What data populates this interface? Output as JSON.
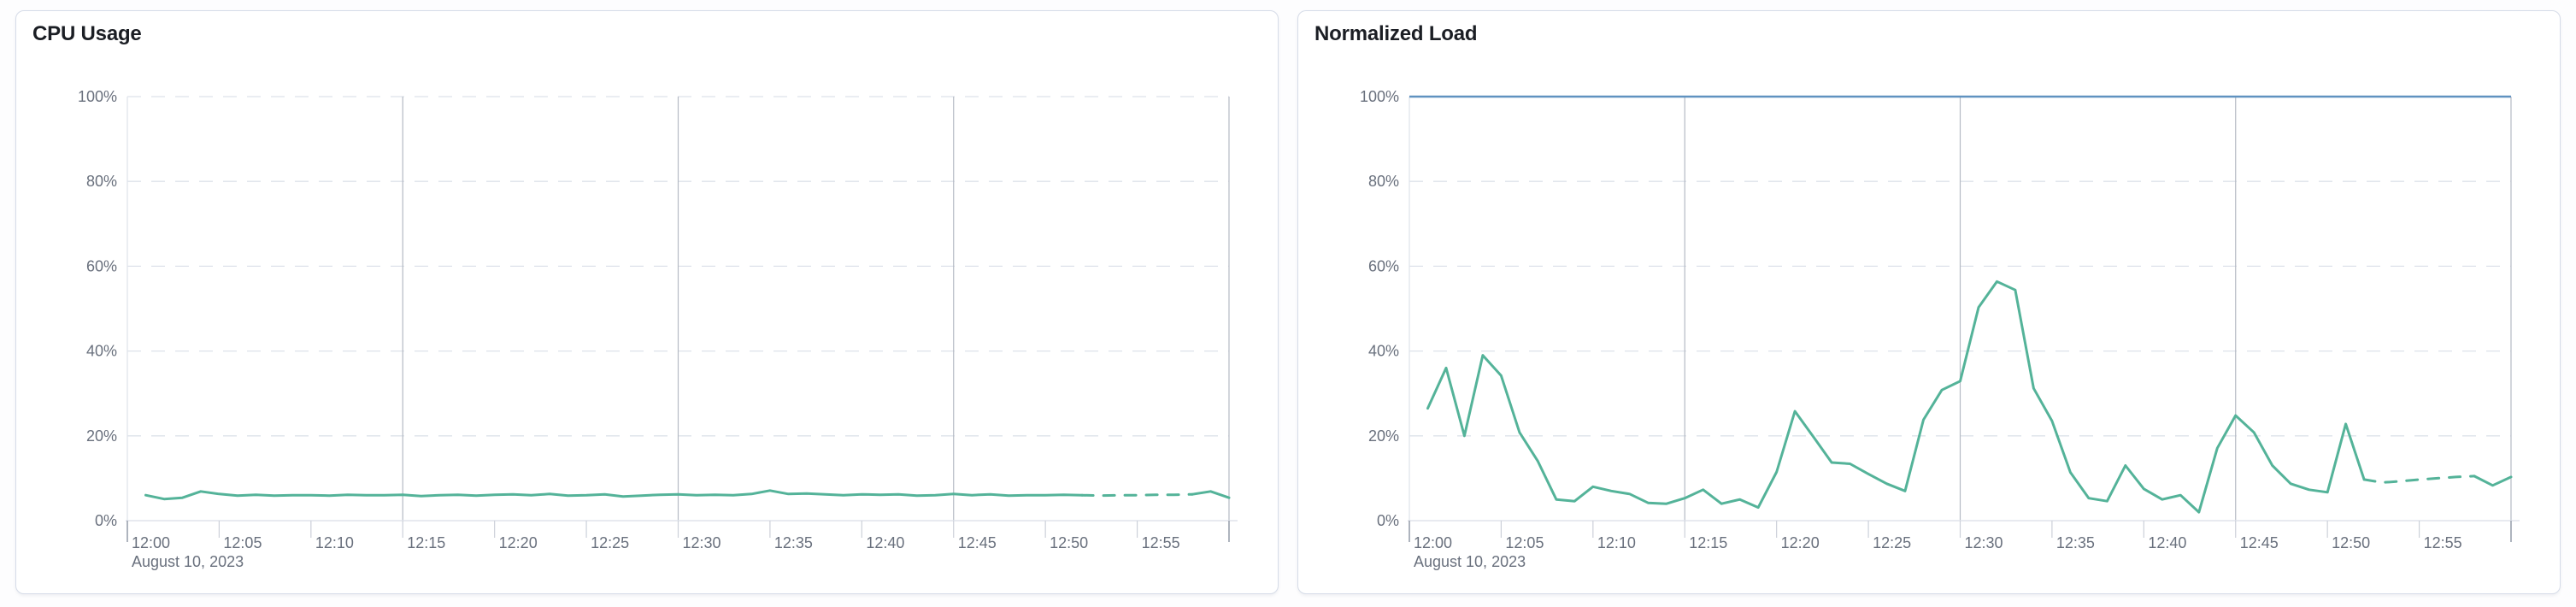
{
  "page": {
    "background": "#fdfdfe",
    "card_background": "#ffffff",
    "card_border_color": "#d6dce8"
  },
  "chart_data": [
    {
      "type": "line",
      "title": "CPU Usage",
      "xlabel": "",
      "ylabel": "",
      "ylim": [
        0,
        100
      ],
      "y_tick_labels": [
        "0%",
        "20%",
        "40%",
        "60%",
        "80%",
        "100%"
      ],
      "x_tick_labels": [
        "12:00",
        "12:05",
        "12:10",
        "12:15",
        "12:20",
        "12:25",
        "12:30",
        "12:35",
        "12:40",
        "12:45",
        "12:50",
        "12:55"
      ],
      "x_date_label": "August 10, 2023",
      "x_range_minutes": [
        0,
        60
      ],
      "grid": {
        "horizontal_dashed_percents": [
          20,
          40,
          60,
          80,
          100
        ],
        "vertical_solid_minutes": [
          15,
          30,
          45,
          60
        ],
        "legend": "none"
      },
      "series": [
        {
          "name": "cpu-usage",
          "color": "#54b399",
          "dashed_segment_minutes": [
            52,
            58
          ],
          "points": [
            [
              1,
              6.0
            ],
            [
              2,
              5.1
            ],
            [
              3,
              5.4
            ],
            [
              4,
              6.9
            ],
            [
              5,
              6.3
            ],
            [
              6,
              5.9
            ],
            [
              7,
              6.1
            ],
            [
              8,
              5.9
            ],
            [
              9,
              6.0
            ],
            [
              10,
              6.0
            ],
            [
              11,
              5.9
            ],
            [
              12,
              6.1
            ],
            [
              13,
              6.0
            ],
            [
              14,
              6.0
            ],
            [
              15,
              6.1
            ],
            [
              16,
              5.8
            ],
            [
              17,
              6.0
            ],
            [
              18,
              6.1
            ],
            [
              19,
              5.9
            ],
            [
              20,
              6.1
            ],
            [
              21,
              6.2
            ],
            [
              22,
              6.0
            ],
            [
              23,
              6.3
            ],
            [
              24,
              5.9
            ],
            [
              25,
              6.0
            ],
            [
              26,
              6.2
            ],
            [
              27,
              5.7
            ],
            [
              28,
              5.9
            ],
            [
              29,
              6.1
            ],
            [
              30,
              6.2
            ],
            [
              31,
              6.0
            ],
            [
              32,
              6.1
            ],
            [
              33,
              6.0
            ],
            [
              34,
              6.3
            ],
            [
              35,
              7.1
            ],
            [
              36,
              6.3
            ],
            [
              37,
              6.4
            ],
            [
              38,
              6.2
            ],
            [
              39,
              6.0
            ],
            [
              40,
              6.2
            ],
            [
              41,
              6.1
            ],
            [
              42,
              6.2
            ],
            [
              43,
              5.9
            ],
            [
              44,
              6.0
            ],
            [
              45,
              6.3
            ],
            [
              46,
              6.0
            ],
            [
              47,
              6.2
            ],
            [
              48,
              5.9
            ],
            [
              49,
              6.0
            ],
            [
              50,
              6.0
            ],
            [
              51,
              6.1
            ],
            [
              52,
              6.0
            ],
            [
              53,
              5.9
            ],
            [
              54,
              6.0
            ],
            [
              55,
              6.0
            ],
            [
              56,
              6.1
            ],
            [
              57,
              6.1
            ],
            [
              58,
              6.2
            ],
            [
              59,
              6.9
            ],
            [
              60,
              5.4
            ]
          ]
        }
      ],
      "reference_lines": []
    },
    {
      "type": "line",
      "title": "Normalized Load",
      "xlabel": "",
      "ylabel": "",
      "ylim": [
        0,
        100
      ],
      "y_tick_labels": [
        "0%",
        "20%",
        "40%",
        "60%",
        "80%",
        "100%"
      ],
      "x_tick_labels": [
        "12:00",
        "12:05",
        "12:10",
        "12:15",
        "12:20",
        "12:25",
        "12:30",
        "12:35",
        "12:40",
        "12:45",
        "12:50",
        "12:55"
      ],
      "x_date_label": "August 10, 2023",
      "x_range_minutes": [
        0,
        60
      ],
      "grid": {
        "horizontal_dashed_percents": [
          20,
          40,
          60,
          80,
          100
        ],
        "vertical_solid_minutes": [
          15,
          30,
          45,
          60
        ],
        "legend": "none"
      },
      "series": [
        {
          "name": "normalized-load",
          "color": "#54b399",
          "dashed_segment_minutes": [
            52,
            58
          ],
          "points": [
            [
              1,
              26.5
            ],
            [
              2,
              36.0
            ],
            [
              3,
              20.0
            ],
            [
              4,
              39.0
            ],
            [
              5,
              34.2
            ],
            [
              6,
              20.8
            ],
            [
              7,
              14.0
            ],
            [
              8,
              5.0
            ],
            [
              9,
              4.6
            ],
            [
              10,
              8.0
            ],
            [
              11,
              7.0
            ],
            [
              12,
              6.3
            ],
            [
              13,
              4.2
            ],
            [
              14,
              4.0
            ],
            [
              15,
              5.3
            ],
            [
              16,
              7.3
            ],
            [
              17,
              4.0
            ],
            [
              18,
              5.0
            ],
            [
              19,
              3.1
            ],
            [
              20,
              11.5
            ],
            [
              21,
              25.8
            ],
            [
              22,
              19.8
            ],
            [
              23,
              13.7
            ],
            [
              24,
              13.4
            ],
            [
              25,
              11.0
            ],
            [
              26,
              8.7
            ],
            [
              27,
              7.0
            ],
            [
              28,
              23.8
            ],
            [
              29,
              30.8
            ],
            [
              30,
              32.9
            ],
            [
              31,
              50.3
            ],
            [
              32,
              56.4
            ],
            [
              33,
              54.4
            ],
            [
              34,
              31.2
            ],
            [
              35,
              23.5
            ],
            [
              36,
              11.4
            ],
            [
              37,
              5.3
            ],
            [
              38,
              4.6
            ],
            [
              39,
              13.0
            ],
            [
              40,
              7.5
            ],
            [
              41,
              5.0
            ],
            [
              42,
              6.0
            ],
            [
              43,
              2.0
            ],
            [
              44,
              17.1
            ],
            [
              45,
              24.8
            ],
            [
              46,
              20.8
            ],
            [
              47,
              13.0
            ],
            [
              48,
              8.7
            ],
            [
              49,
              7.3
            ],
            [
              50,
              6.7
            ],
            [
              51,
              22.8
            ],
            [
              52,
              9.7
            ],
            [
              53,
              9.0
            ],
            [
              54,
              9.3
            ],
            [
              55,
              9.7
            ],
            [
              56,
              10.0
            ],
            [
              57,
              10.3
            ],
            [
              58,
              10.5
            ],
            [
              59,
              8.3
            ],
            [
              60,
              10.3
            ]
          ]
        }
      ],
      "reference_lines": [
        {
          "name": "max-threshold",
          "value": 100,
          "color": "#6092c0"
        }
      ]
    }
  ],
  "style_colors": {
    "series_green": "#54b399",
    "reference_blue": "#6092c0",
    "gridline_dashed": "#dde2ea",
    "gridline_vertical": "#b5bac4",
    "axis_line": "#e0e4ec",
    "tick_regular": "#ccd0d9",
    "tick_boundary": "#9aa2ae",
    "axis_text": "#69707d",
    "title_text": "#1b1e24"
  }
}
